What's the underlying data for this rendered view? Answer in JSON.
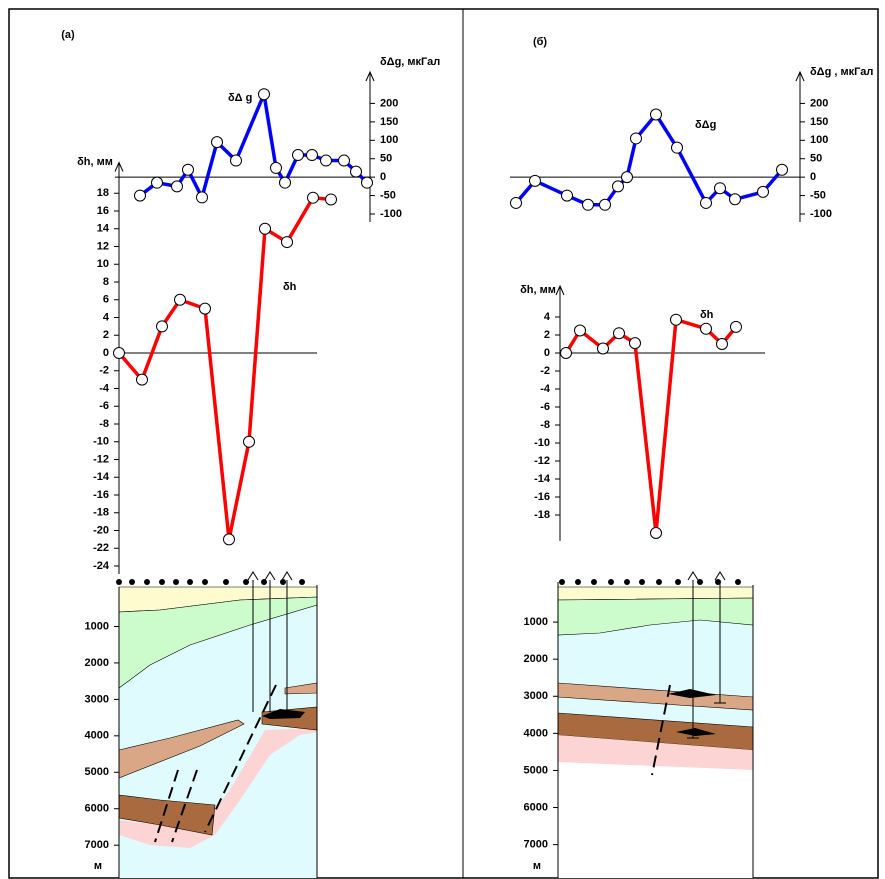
{
  "panel_labels": [
    "(а)",
    "(б)"
  ],
  "chart_data": [
    {
      "type": "line",
      "axis_label": "δΔg, мкГал",
      "annotation": "δΔ g",
      "color": "#0000ff",
      "ylim": [
        -100,
        250
      ],
      "yticks": [
        200,
        150,
        100,
        50,
        0,
        -50,
        -100
      ],
      "values": [
        -50,
        -15,
        -25,
        20,
        -55,
        95,
        45,
        225,
        25,
        -15,
        60,
        60,
        45,
        45,
        15,
        -15
      ]
    },
    {
      "type": "line",
      "axis_label": "δh, мм",
      "annotation": "δh",
      "color": "#ff0000",
      "ylim": [
        -24,
        20
      ],
      "yticks": [
        18,
        16,
        14,
        12,
        10,
        8,
        6,
        4,
        2,
        0,
        -2,
        -4,
        -6,
        -8,
        -10,
        -12,
        -14,
        -16,
        -18,
        -20,
        -22,
        -24
      ],
      "values": [
        0,
        -3,
        3,
        6,
        5,
        -21,
        -10,
        14,
        12.5,
        17.5,
        17.3
      ]
    },
    {
      "type": "line",
      "axis_label": "δΔg , мкГал",
      "annotation": "δΔg",
      "color": "#0000ff",
      "ylim": [
        -100,
        250
      ],
      "yticks": [
        200,
        150,
        100,
        50,
        0,
        -50,
        -100
      ],
      "values": [
        -70,
        -10,
        -50,
        -75,
        -75,
        -25,
        0,
        105,
        170,
        80,
        -70,
        -30,
        -60,
        -40,
        20
      ]
    },
    {
      "type": "line",
      "axis_label": "δh, мм",
      "annotation": "δh",
      "color": "#ff0000",
      "ylim": [
        -20,
        6
      ],
      "yticks": [
        4,
        2,
        0,
        -2,
        -4,
        -6,
        -8,
        -10,
        -12,
        -14,
        -16,
        -18
      ],
      "values": [
        0,
        2.5,
        0.5,
        2.2,
        1.1,
        -20,
        3.7,
        2.7,
        1,
        2.9
      ]
    }
  ],
  "sections": [
    {
      "ylim": [
        0,
        7900
      ],
      "yticks": [
        1000,
        2000,
        3000,
        4000,
        5000,
        6000,
        7000
      ],
      "unit": "м"
    },
    {
      "ylim": [
        0,
        7900
      ],
      "yticks": [
        1000,
        2000,
        3000,
        4000,
        5000,
        6000,
        7000
      ],
      "unit": "м"
    }
  ]
}
